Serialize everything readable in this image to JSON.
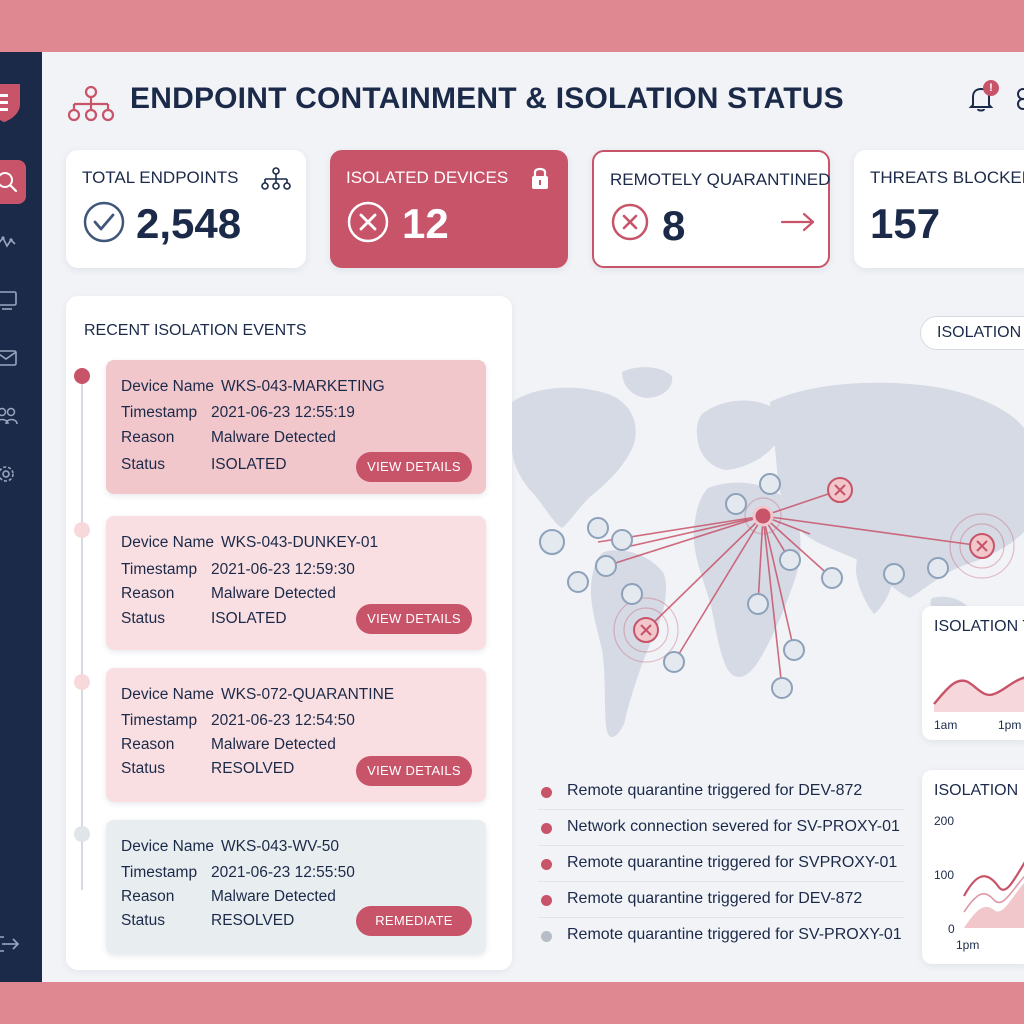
{
  "header": {
    "title": "ENDPOINT CONTAINMENT & ISOLATION STATUS",
    "notification_count": "!"
  },
  "stats": {
    "total": {
      "label": "TOTAL ENDPOINTS",
      "value": "2,548"
    },
    "isolated": {
      "label": "ISOLATED DEVICES",
      "value": "12"
    },
    "quarantined": {
      "label": "REMOTELY QUARANTINED",
      "value": "8"
    },
    "threats": {
      "label": "THREATS BLOCKED",
      "value": "157"
    }
  },
  "events_panel": {
    "title": "RECENT ISOLATION EVENTS",
    "field_labels": {
      "device": "Device Name",
      "timestamp": "Timestamp",
      "reason": "Reason",
      "status": "Status"
    },
    "events": [
      {
        "device": "WKS-043-MARKETING",
        "timestamp": "2021-06-23 12:55:19",
        "reason": "Malware Detected",
        "status": "ISOLATED",
        "action": "VIEW DETAILS"
      },
      {
        "device": "WKS-043-DUNKEY-01",
        "timestamp": "2021-06-23 12:59:30",
        "reason": "Malware Detected",
        "status": "ISOLATED",
        "action": "VIEW DETAILS"
      },
      {
        "device": "WKS-072-QUARANTINE",
        "timestamp": "2021-06-23 12:54:50",
        "reason": "Malware Detected",
        "status": "RESOLVED",
        "action": "VIEW DETAILS"
      },
      {
        "device": "WKS-043-WV-50",
        "timestamp": "2021-06-23 12:55:50",
        "reason": "Malware Detected",
        "status": "RESOLVED",
        "action": "REMEDIATE"
      }
    ]
  },
  "map": {
    "filter_label": "ISOLATION"
  },
  "activity": [
    "Remote quarantine triggered for DEV-872",
    "Network connection severed for SV-PROXY-01",
    "Remote quarantine triggered for SVPROXY-01",
    "Remote quarantine triggered for DEV-872",
    "Remote quarantine triggered for SV-PROXY-01"
  ],
  "mini_chart_1": {
    "title": "ISOLATION T",
    "x_ticks": [
      "1am",
      "1pm"
    ]
  },
  "mini_chart_2": {
    "title": "ISOLATION",
    "y_ticks": [
      "200",
      "100",
      "0"
    ],
    "x_ticks": [
      "1pm"
    ]
  },
  "colors": {
    "accent": "#c8546a",
    "navy": "#1c2a4a",
    "event_red": "#f2c7cc",
    "event_pink": "#f9dfe1",
    "event_gray": "#e8edef"
  }
}
